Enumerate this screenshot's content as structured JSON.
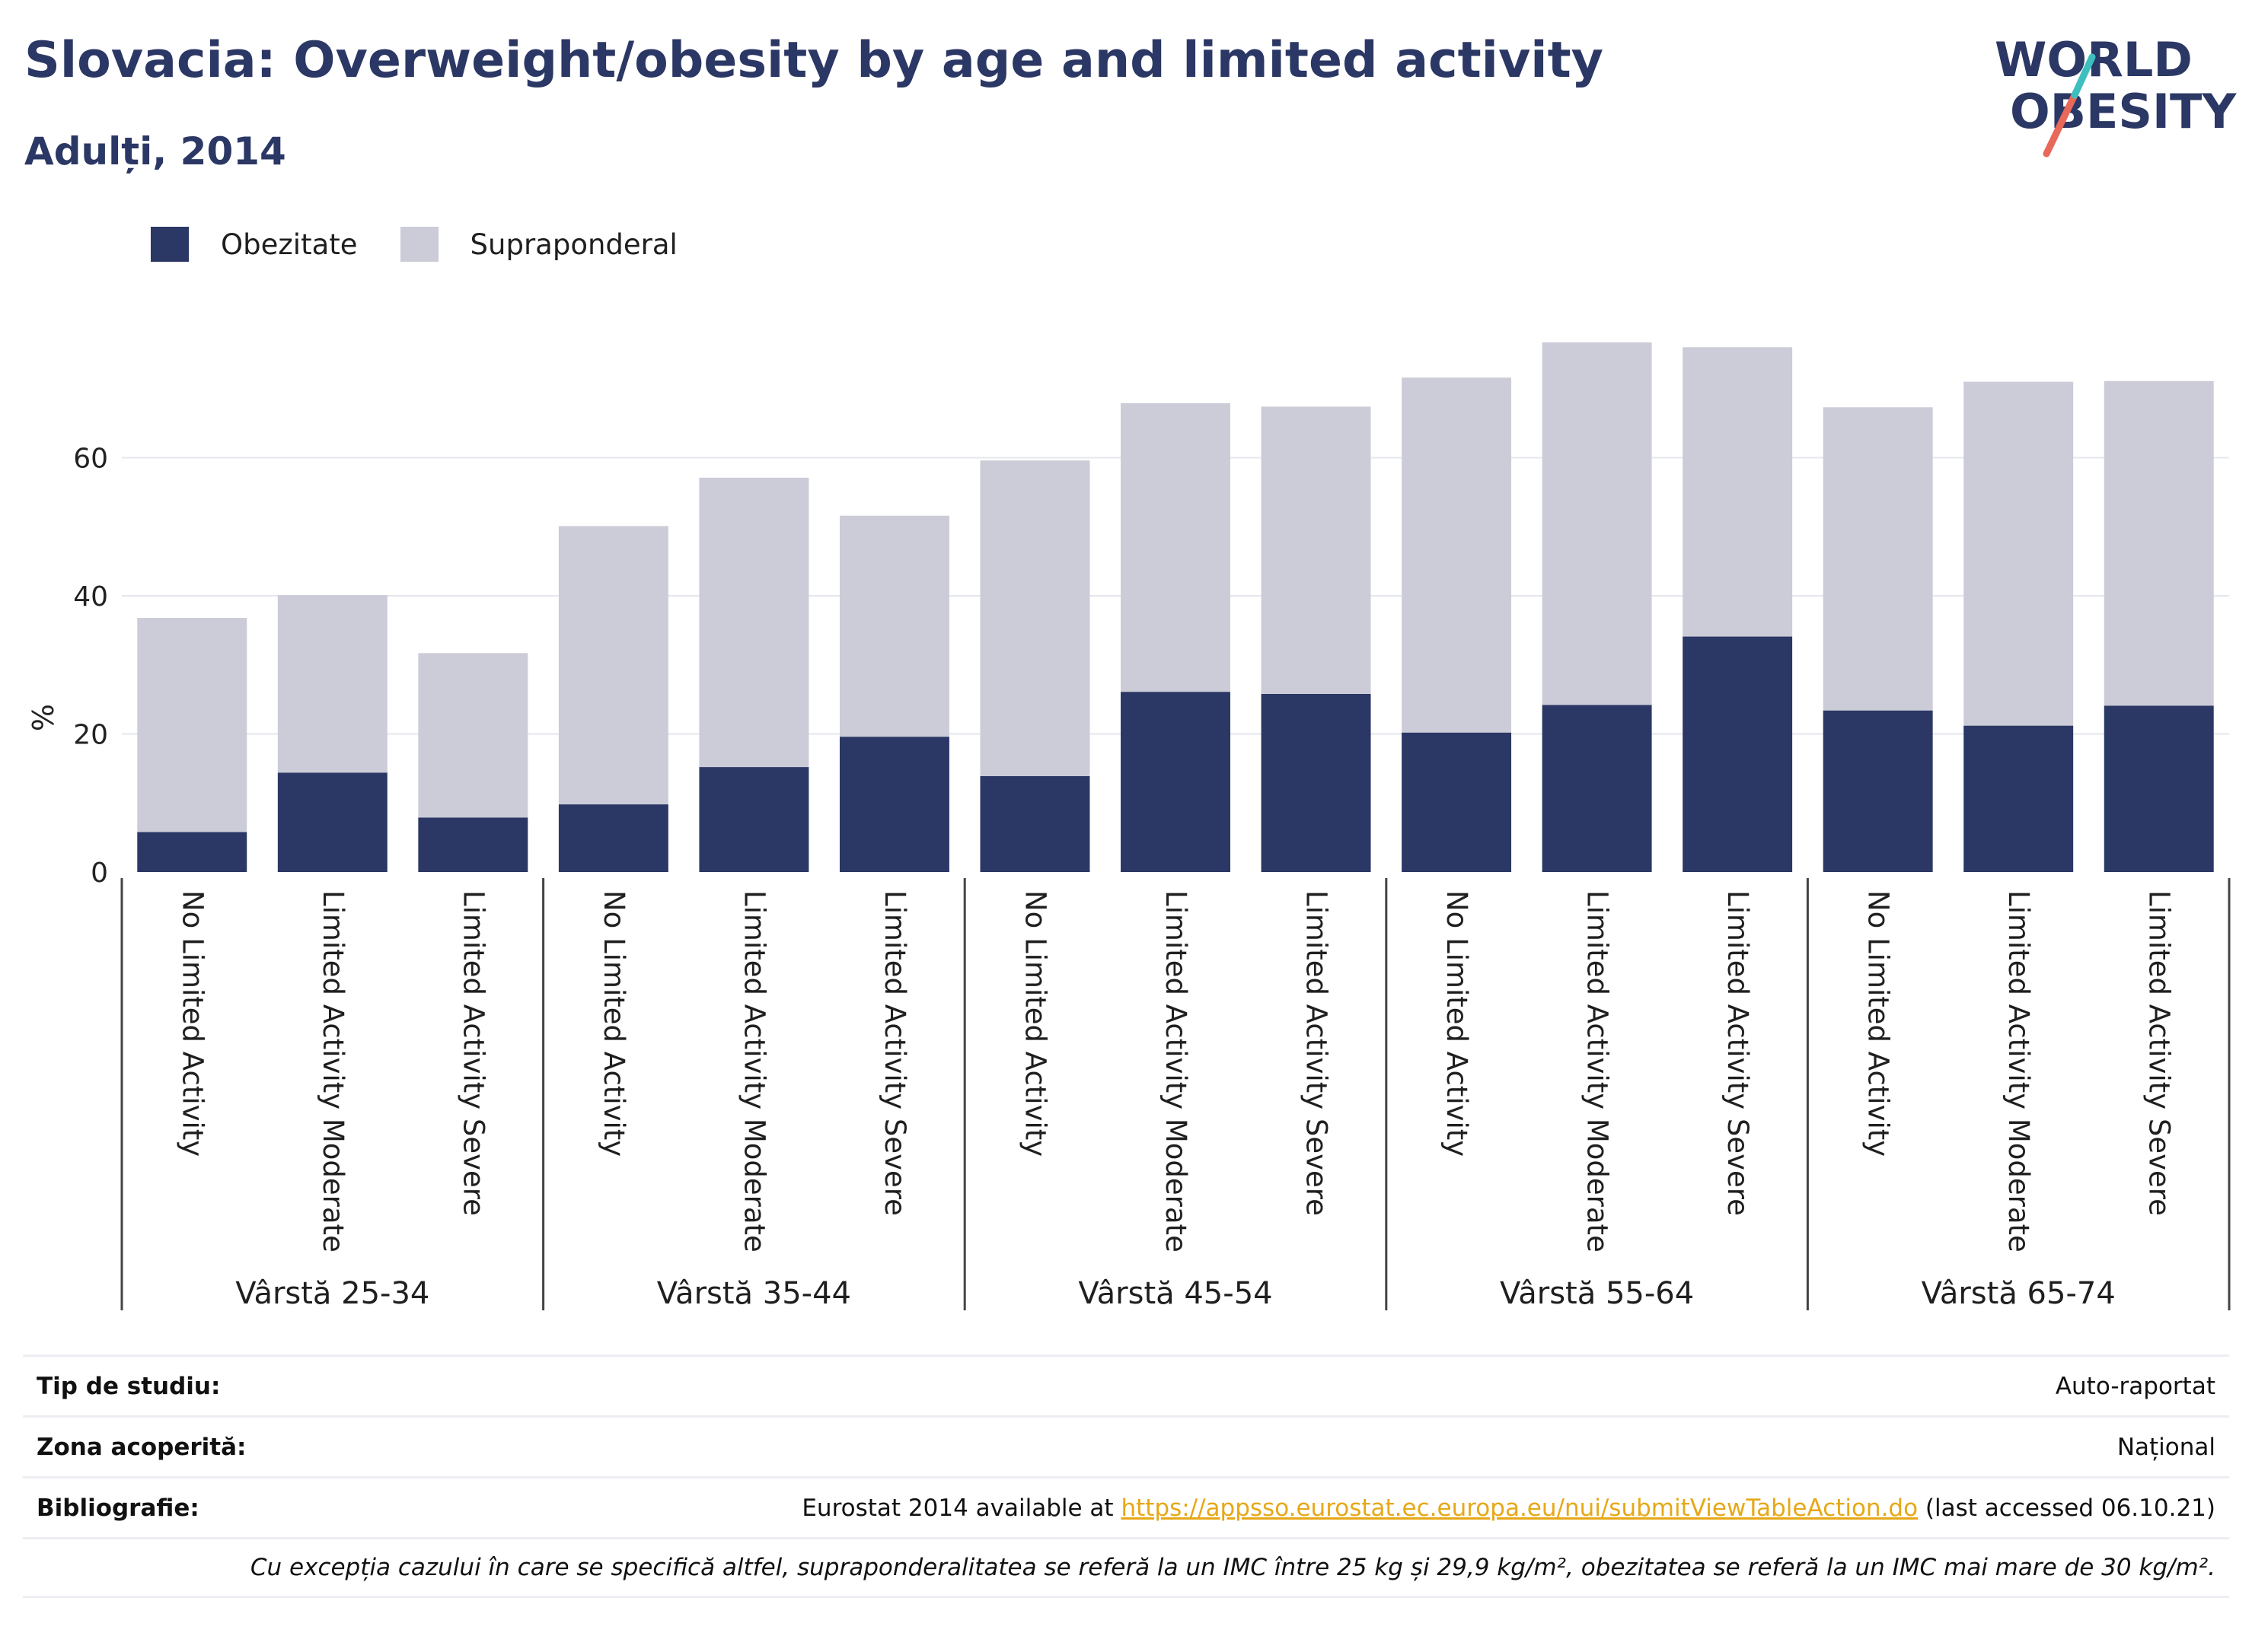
{
  "title": "Slovacia: Overweight/obesity by age and limited activity",
  "subtitle": "Adulți, 2014",
  "logo": {
    "line1": "WORLD",
    "line2": "OBESITY"
  },
  "colors": {
    "obesity": "#2b3764",
    "overweight": "#cbccd7",
    "accent_red": "#e8685a",
    "accent_teal": "#3dbfc0"
  },
  "chart_data": {
    "type": "bar",
    "stacked": true,
    "ylabel": "%",
    "ylim": [
      0,
      80
    ],
    "yticks": [
      0,
      20,
      40,
      60
    ],
    "grid": true,
    "legend_position": "top-left",
    "groups": [
      {
        "label": "Vârstă 25-34",
        "categories": [
          "No Limited Activity",
          "Limited Activity Moderate",
          "Limited Activity Severe"
        ]
      },
      {
        "label": "Vârstă 35-44",
        "categories": [
          "No Limited Activity",
          "Limited Activity Moderate",
          "Limited Activity Severe"
        ]
      },
      {
        "label": "Vârstă 45-54",
        "categories": [
          "No Limited Activity",
          "Limited Activity Moderate",
          "Limited Activity Severe"
        ]
      },
      {
        "label": "Vârstă 55-64",
        "categories": [
          "No Limited Activity",
          "Limited Activity Moderate",
          "Limited Activity Severe"
        ]
      },
      {
        "label": "Vârstă 65-74",
        "categories": [
          "No Limited Activity",
          "Limited Activity Moderate",
          "Limited Activity Severe"
        ]
      }
    ],
    "series": [
      {
        "name": "Obezitate",
        "values": [
          5.8,
          14.4,
          7.9,
          9.8,
          15.2,
          19.6,
          13.9,
          26.1,
          25.8,
          20.2,
          24.2,
          34.1,
          23.4,
          21.2,
          24.1
        ]
      },
      {
        "name": "Supraponderal",
        "values": [
          31.0,
          25.7,
          23.8,
          40.3,
          41.9,
          32.0,
          45.7,
          41.8,
          41.6,
          51.4,
          52.5,
          41.9,
          43.9,
          49.8,
          47.0
        ]
      }
    ]
  },
  "info": {
    "study_type_label": "Tip de studiu:",
    "study_type_value": "Auto-raportat",
    "coverage_label": "Zona acoperită:",
    "coverage_value": "Național",
    "bibliography_label": "Bibliografie:",
    "bibliography_prefix": "Eurostat 2014 available at ",
    "bibliography_link": "https://appsso.eurostat.ec.europa.eu/nui/submitViewTableAction.do",
    "bibliography_suffix": " (last accessed 06.10.21)",
    "note": "Cu excepția cazului în care se specifică altfel, supraponderalitatea se referă la un IMC între 25 kg și 29,9 kg/m², obezitatea se referă la un IMC mai mare de 30 kg/m²."
  }
}
